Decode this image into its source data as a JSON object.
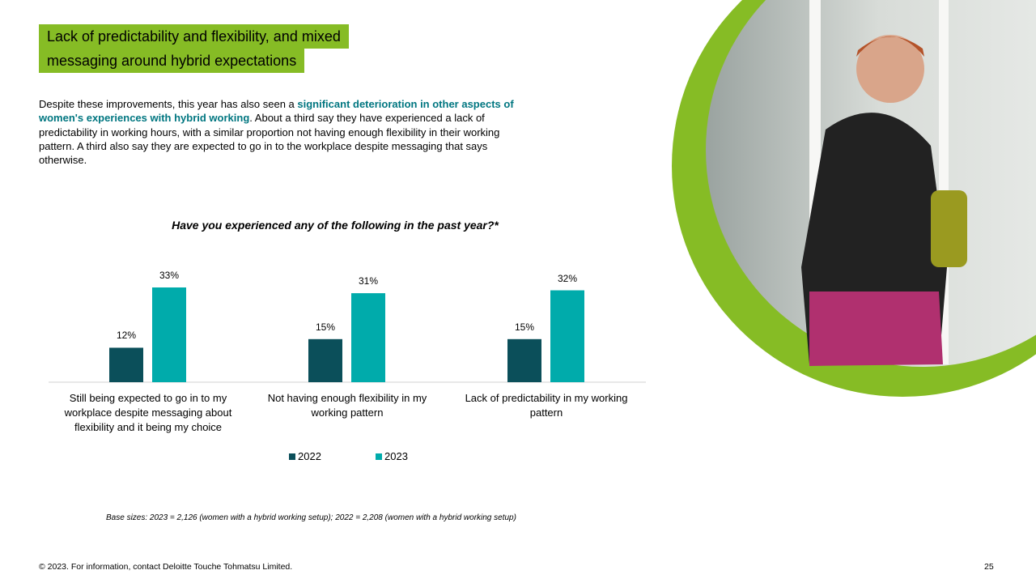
{
  "title": [
    "Lack of predictability and flexibility, and mixed",
    "messaging around hybrid expectations"
  ],
  "body": [
    "Despite these improvements, this year has also seen a ",
    "significant deterioration in other aspects of women's experiences with hybrid working",
    ". About a third say they have experienced a lack of predictability in working hours, with a similar proportion not having enough flexibility in their working pattern. A third also say they are expected to go in to the workplace despite messaging that says otherwise."
  ],
  "chart_data": {
    "type": "bar",
    "title": "Have you experienced any of the following in the past year?*",
    "categories": [
      "Still being expected to go in to my workplace despite messaging about flexibility and it being my choice",
      "Not having enough flexibility in my working pattern",
      "Lack of predictability in my working pattern"
    ],
    "series": [
      {
        "name": "2022",
        "color": "#0b4f5a",
        "values": [
          12,
          15,
          15
        ],
        "value_labels": [
          "12%",
          "15%",
          "15%"
        ]
      },
      {
        "name": "2023",
        "color": "#00abab",
        "values": [
          33,
          31,
          32
        ],
        "value_labels": [
          "33%",
          "31%",
          "32%"
        ]
      }
    ]
  },
  "base_note": "Base sizes: 2023 = 2,126 (women with a hybrid working setup); 2022 = 2,208 (women with a hybrid working setup)",
  "footer": "© 2023. For information, contact Deloitte Touche Tohmatsu Limited.",
  "page_number": "25"
}
